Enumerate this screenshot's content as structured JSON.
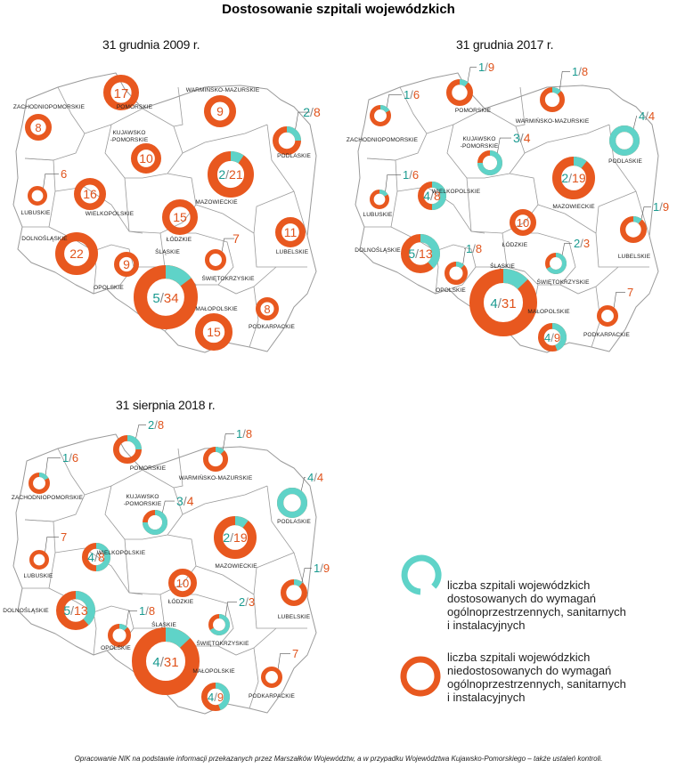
{
  "title": "Dostosowanie szpitali wojewódzkich",
  "colors": {
    "adapted": "#5fd3c8",
    "not_adapted": "#e8581f",
    "border": "#9a9a9a",
    "label": "#1a9a90",
    "orange_label": "#e0531c"
  },
  "maps": [
    {
      "title": "31 grudnia 2009 r.",
      "regions": [
        {
          "name": "ZACHODNIOPOMORSKIE",
          "label": "8",
          "adapted": 0,
          "total": 8
        },
        {
          "name": "POMORSKIE",
          "label": "17",
          "adapted": 0,
          "total": 17
        },
        {
          "name": "WARMIŃSKO-MAZURSKIE",
          "label": "9",
          "adapted": 0,
          "total": 9
        },
        {
          "name": "KUJAWSKO--POMORSKIE",
          "label": "10",
          "adapted": 0,
          "total": 10
        },
        {
          "name": "PODLASKIE",
          "label": "2/8",
          "adapted": 2,
          "total": 8
        },
        {
          "name": "LUBUSKIE",
          "label": "6",
          "adapted": 0,
          "total": 6
        },
        {
          "name": "WIELKOPOLSKIE",
          "label": "16",
          "adapted": 0,
          "total": 16
        },
        {
          "name": "MAZOWIECKIE",
          "label": "2/21",
          "adapted": 2,
          "total": 21
        },
        {
          "name": "ŁÓDZKIE",
          "label": "15",
          "adapted": 0,
          "total": 15
        },
        {
          "name": "LUBELSKIE",
          "label": "11",
          "adapted": 0,
          "total": 11
        },
        {
          "name": "DOLNOŚLĄSKIE",
          "label": "22",
          "adapted": 0,
          "total": 22
        },
        {
          "name": "OPOLSKIE",
          "label": "9",
          "adapted": 0,
          "total": 9
        },
        {
          "name": "ŚLĄSKIE",
          "label": "5/34",
          "adapted": 5,
          "total": 34
        },
        {
          "name": "ŚWIĘTOKRZYSKIE",
          "label": "7",
          "adapted": 0,
          "total": 7
        },
        {
          "name": "MAŁOPOLSKIE",
          "label": "15",
          "adapted": 0,
          "total": 15
        },
        {
          "name": "PODKARPACKIE",
          "label": "8",
          "adapted": 0,
          "total": 8
        }
      ]
    },
    {
      "title": "31 grudnia 2017 r.",
      "regions": [
        {
          "name": "ZACHODNIOPOMORSKIE",
          "label": "1/6",
          "adapted": 1,
          "total": 6
        },
        {
          "name": "POMORSKIE",
          "label": "1/9",
          "adapted": 1,
          "total": 9
        },
        {
          "name": "WARMIŃSKO-MAZURSKIE",
          "label": "1/8",
          "adapted": 1,
          "total": 8
        },
        {
          "name": "KUJAWSKO--POMORSKIE",
          "label": "3/4",
          "adapted": 3,
          "total": 4
        },
        {
          "name": "PODLASKIE",
          "label": "4/4",
          "adapted": 4,
          "total": 4
        },
        {
          "name": "LUBUSKIE",
          "label": "1/6",
          "adapted": 1,
          "total": 6
        },
        {
          "name": "WIELKOPOLSKIE",
          "label": "4/8",
          "adapted": 4,
          "total": 8
        },
        {
          "name": "MAZOWIECKIE",
          "label": "2/19",
          "adapted": 2,
          "total": 19
        },
        {
          "name": "ŁÓDZKIE",
          "label": "10",
          "adapted": 0,
          "total": 10
        },
        {
          "name": "LUBELSKIE",
          "label": "1/9",
          "adapted": 1,
          "total": 9
        },
        {
          "name": "DOLNOŚLĄSKIE",
          "label": "5/13",
          "adapted": 5,
          "total": 13
        },
        {
          "name": "OPOLSKIE",
          "label": "1/8",
          "adapted": 1,
          "total": 8
        },
        {
          "name": "ŚLĄSKIE",
          "label": "4/31",
          "adapted": 4,
          "total": 31
        },
        {
          "name": "ŚWIĘTOKRZYSKIE",
          "label": "2/3",
          "adapted": 2,
          "total": 3
        },
        {
          "name": "MAŁOPOLSKIE",
          "label": "4/9",
          "adapted": 4,
          "total": 9
        },
        {
          "name": "PODKARPACKIE",
          "label": "7",
          "adapted": 0,
          "total": 7
        }
      ]
    },
    {
      "title": "31 sierpnia 2018 r.",
      "regions": [
        {
          "name": "ZACHODNIOPOMORSKIE",
          "label": "1/6",
          "adapted": 1,
          "total": 6
        },
        {
          "name": "POMORSKIE",
          "label": "2/8",
          "adapted": 2,
          "total": 8
        },
        {
          "name": "WARMIŃSKO-MAZURSKIE",
          "label": "1/8",
          "adapted": 1,
          "total": 8
        },
        {
          "name": "KUJAWSKO--POMORSKIE",
          "label": "3/4",
          "adapted": 3,
          "total": 4
        },
        {
          "name": "PODLASKIE",
          "label": "4/4",
          "adapted": 4,
          "total": 4
        },
        {
          "name": "LUBUSKIE",
          "label": "7",
          "adapted": 0,
          "total": 7
        },
        {
          "name": "WIELKOPOLSKIE",
          "label": "4/8",
          "adapted": 4,
          "total": 8
        },
        {
          "name": "MAZOWIECKIE",
          "label": "2/19",
          "adapted": 2,
          "total": 19
        },
        {
          "name": "ŁÓDZKIE",
          "label": "10",
          "adapted": 0,
          "total": 10
        },
        {
          "name": "LUBELSKIE",
          "label": "1/9",
          "adapted": 1,
          "total": 9
        },
        {
          "name": "DOLNOŚLĄSKIE",
          "label": "5/13",
          "adapted": 5,
          "total": 13
        },
        {
          "name": "OPOLSKIE",
          "label": "1/8",
          "adapted": 1,
          "total": 8
        },
        {
          "name": "ŚLĄSKIE",
          "label": "4/31",
          "adapted": 4,
          "total": 31
        },
        {
          "name": "ŚWIĘTOKRZYSKIE",
          "label": "2/3",
          "adapted": 2,
          "total": 3
        },
        {
          "name": "MAŁOPOLSKIE",
          "label": "4/9",
          "adapted": 4,
          "total": 9
        },
        {
          "name": "PODKARPACKIE",
          "label": "7",
          "adapted": 0,
          "total": 7
        }
      ]
    }
  ],
  "legend": {
    "adapted_lines": [
      "liczba szpitali wojewódzkich",
      "dostosowanych do wymagań",
      "ogólnoprzestrzennych, sanitarnych",
      "i instalacyjnych"
    ],
    "not_adapted_lines": [
      "liczba szpitali wojewódzkich",
      "niedostosowanych do wymagań",
      "ogólnoprzestrzennych, sanitarnych",
      "i instalacyjnych"
    ]
  },
  "footer": "Opracowanie NIK na podstawie informacji przekazanych przez Marszałków Województw, a w przypadku Województwa Kujawsko-Pomorskiego – także ustaleń kontroli."
}
